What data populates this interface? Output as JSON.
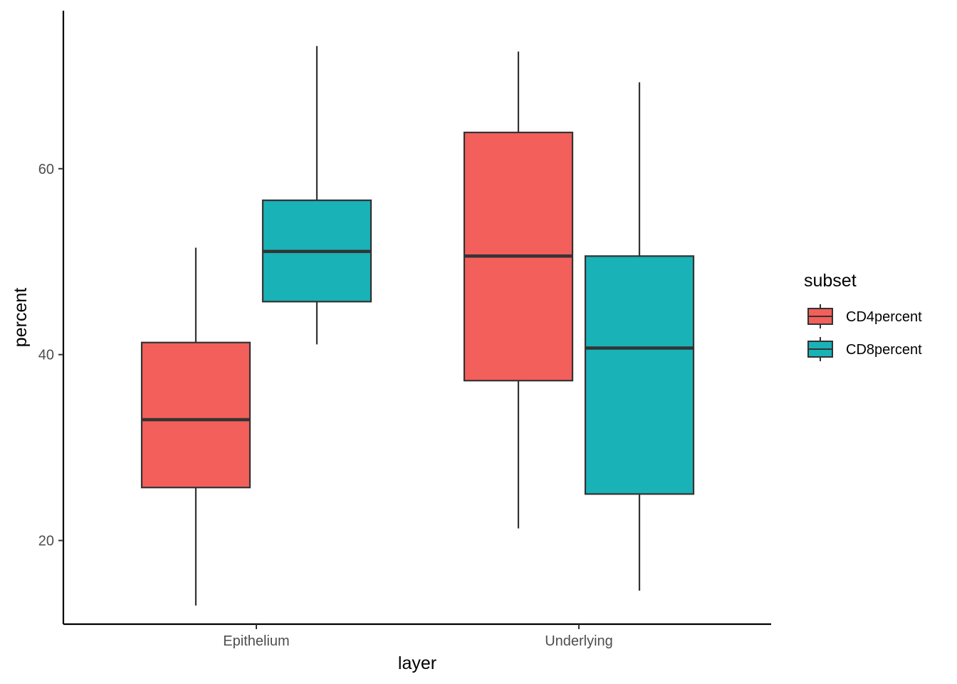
{
  "chart_data": {
    "type": "boxplot",
    "title": "",
    "xlabel": "layer",
    "ylabel": "percent",
    "categories": [
      "Epithelium",
      "Underlying"
    ],
    "ylim": [
      11,
      77
    ],
    "yticks": [
      20,
      40,
      60
    ],
    "ytick_labels": [
      "20",
      "40",
      "60"
    ],
    "legend": {
      "title": "subset",
      "placement": "right"
    },
    "series": [
      {
        "name": "CD4percent",
        "color": "#F35F5B",
        "boxes": [
          {
            "category": "Epithelium",
            "min": 13.0,
            "q1": 25.7,
            "median": 33.0,
            "q3": 41.3,
            "max": 51.5
          },
          {
            "category": "Underlying",
            "min": 21.3,
            "q1": 37.2,
            "median": 50.6,
            "q3": 63.9,
            "max": 72.6
          }
        ]
      },
      {
        "name": "CD8percent",
        "color": "#19B2B7",
        "boxes": [
          {
            "category": "Epithelium",
            "min": 41.1,
            "q1": 45.7,
            "median": 51.1,
            "q3": 56.6,
            "max": 73.2
          },
          {
            "category": "Underlying",
            "min": 14.6,
            "q1": 25.0,
            "median": 40.7,
            "q3": 50.6,
            "max": 69.3
          }
        ]
      }
    ]
  }
}
